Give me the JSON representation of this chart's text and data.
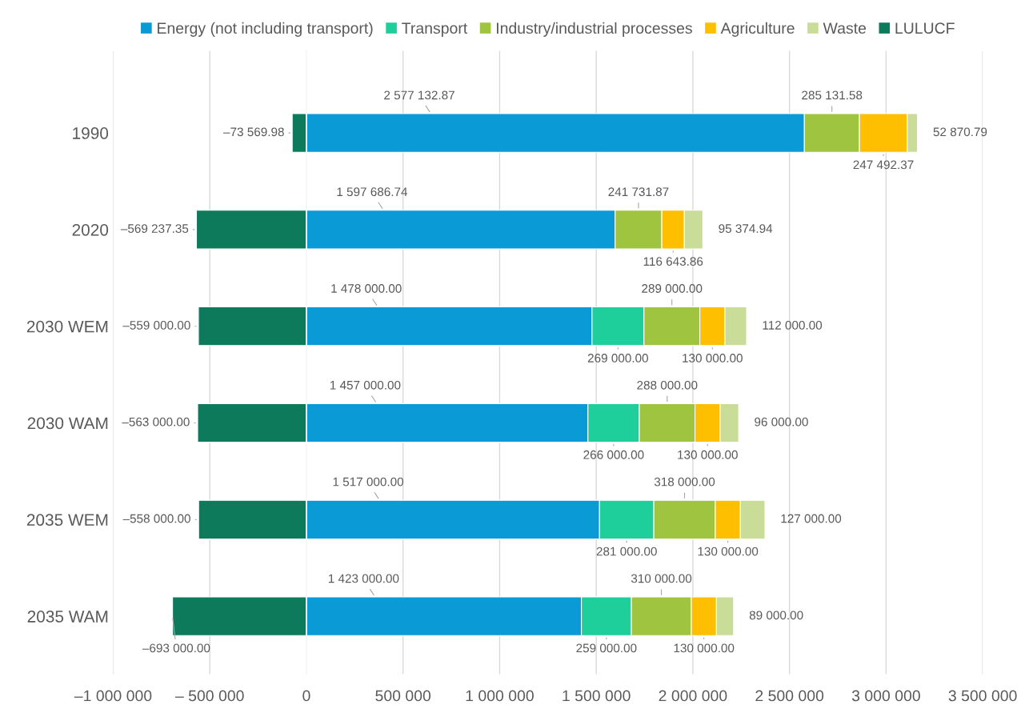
{
  "chart_data": {
    "type": "bar",
    "orientation": "horizontal",
    "stacked": true,
    "categories": [
      "1990",
      "2020",
      "2030 WEM",
      "2030 WAM",
      "2035 WEM",
      "2035 WAM"
    ],
    "series": [
      {
        "name": "Energy (not including transport)",
        "color": "#0a9ad6",
        "values": [
          2577132.87,
          1597686.74,
          1478000,
          1457000,
          1517000,
          1423000
        ],
        "value_labels": [
          "2 577 132.87",
          "1 597 686.74",
          "1 478 000.00",
          "1 457 000.00",
          "1 517 000.00",
          "1 423 000.00"
        ]
      },
      {
        "name": "Transport",
        "color": "#1ecf9c",
        "values": [
          null,
          null,
          269000,
          266000,
          281000,
          259000
        ],
        "value_labels": [
          null,
          null,
          "269 000.00",
          "266 000.00",
          "281 000.00",
          "259 000.00"
        ]
      },
      {
        "name": "Industry/industrial processes",
        "color": "#9fc440",
        "values": [
          285131.58,
          241731.87,
          289000,
          288000,
          318000,
          310000
        ],
        "value_labels": [
          "285 131.58",
          "241 731.87",
          "289 000.00",
          "288 000.00",
          "318 000.00",
          "310 000.00"
        ]
      },
      {
        "name": "Agriculture",
        "color": "#fdbf00",
        "values": [
          247492.37,
          116643.86,
          130000,
          130000,
          130000,
          130000
        ],
        "value_labels": [
          "247 492.37",
          "116 643.86",
          "130 000.00",
          "130 000.00",
          "130 000.00",
          "130 000.00"
        ]
      },
      {
        "name": "Waste",
        "color": "#c9dc98",
        "values": [
          52870.79,
          95374.94,
          112000,
          96000,
          127000,
          89000
        ],
        "value_labels": [
          "52 870.79",
          "95 374.94",
          "112 000.00",
          "96 000.00",
          "127 000.00",
          "89 000.00"
        ]
      },
      {
        "name": "LULUCF",
        "color": "#0c7a5b",
        "values": [
          -73569.98,
          -569237.35,
          -559000,
          -563000,
          -558000,
          -693000
        ],
        "value_labels": [
          "–73 569.98",
          "–569 237.35",
          "–559 000.00",
          "–563 000.00",
          "–558 000.00",
          "–693 000.00"
        ]
      }
    ],
    "xlim": [
      -1000000,
      3500000
    ],
    "xticks": [
      {
        "value": -1000000,
        "label": "–1 000 000"
      },
      {
        "value": -500000,
        "label": "– 500 000"
      },
      0,
      {
        "value": 500000,
        "label": "500 000"
      },
      {
        "value": 1000000,
        "label": "1 000 000"
      },
      {
        "value": 1500000,
        "label": "1 500 000"
      },
      {
        "value": 2000000,
        "label": "2 000 000"
      },
      {
        "value": 2500000,
        "label": "2 500 000"
      },
      {
        "value": 3000000,
        "label": "3 000 000"
      },
      {
        "value": 3500000,
        "label": "3 500 000"
      }
    ],
    "grid": "x",
    "legend": "top"
  }
}
